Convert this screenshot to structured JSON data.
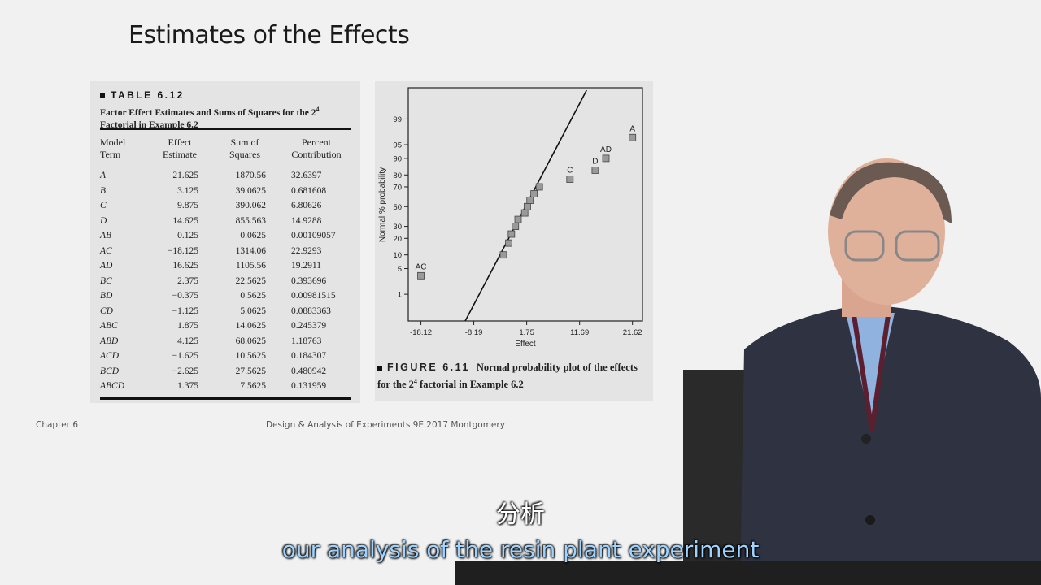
{
  "slide": {
    "title": "Estimates of the Effects",
    "footer_left": "Chapter 6",
    "footer_center": "Design & Analysis of Experiments 9E 2017 Montgomery"
  },
  "table": {
    "heading": "TABLE 6.12",
    "caption_pre": "Factor Effect Estimates and Sums of Squares for the 2",
    "caption_sup": "4",
    "caption_post": "Factorial in Example 6.2",
    "headers": [
      {
        "line1": "Model",
        "line2": "Term"
      },
      {
        "line1": "Effect",
        "line2": "Estimate"
      },
      {
        "line1": "Sum of",
        "line2": "Squares"
      },
      {
        "line1": "Percent",
        "line2": "Contribution"
      }
    ],
    "rows": [
      {
        "term": "A",
        "effect": "21.625",
        "ss": "1870.56",
        "pct": "32.6397"
      },
      {
        "term": "B",
        "effect": "3.125",
        "ss": "39.0625",
        "pct": "0.681608"
      },
      {
        "term": "C",
        "effect": "9.875",
        "ss": "390.062",
        "pct": "6.80626"
      },
      {
        "term": "D",
        "effect": "14.625",
        "ss": "855.563",
        "pct": "14.9288"
      },
      {
        "term": "AB",
        "effect": "0.125",
        "ss": "0.0625",
        "pct": "0.00109057"
      },
      {
        "term": "AC",
        "effect": "−18.125",
        "ss": "1314.06",
        "pct": "22.9293"
      },
      {
        "term": "AD",
        "effect": "16.625",
        "ss": "1105.56",
        "pct": "19.2911"
      },
      {
        "term": "BC",
        "effect": "2.375",
        "ss": "22.5625",
        "pct": "0.393696"
      },
      {
        "term": "BD",
        "effect": "−0.375",
        "ss": "0.5625",
        "pct": "0.00981515"
      },
      {
        "term": "CD",
        "effect": "−1.125",
        "ss": "5.0625",
        "pct": "0.0883363"
      },
      {
        "term": "ABC",
        "effect": "1.875",
        "ss": "14.0625",
        "pct": "0.245379"
      },
      {
        "term": "ABD",
        "effect": "4.125",
        "ss": "68.0625",
        "pct": "1.18763"
      },
      {
        "term": "ACD",
        "effect": "−1.625",
        "ss": "10.5625",
        "pct": "0.184307"
      },
      {
        "term": "BCD",
        "effect": "−2.625",
        "ss": "27.5625",
        "pct": "0.480942"
      },
      {
        "term": "ABCD",
        "effect": "1.375",
        "ss": "7.5625",
        "pct": "0.131959"
      }
    ]
  },
  "figure": {
    "label": "FIGURE 6.11",
    "caption_pre": "Normal probability plot of the effects for the 2",
    "caption_sup": "4",
    "caption_post": " factorial in Example 6.2"
  },
  "chart_data": {
    "type": "scatter",
    "title": "",
    "xlabel": "Effect",
    "ylabel": "Normal % probability",
    "xlim": [
      -20.5,
      23.5
    ],
    "x_ticks": [
      -18.12,
      -8.19,
      1.75,
      11.69,
      21.62
    ],
    "y_ticks": [
      1,
      5,
      10,
      20,
      30,
      50,
      70,
      80,
      90,
      95,
      99
    ],
    "y_scale": "normal-probability",
    "points": [
      {
        "x": -18.125,
        "p": 3.33,
        "label": "AC"
      },
      {
        "x": -2.625,
        "p": 10.0
      },
      {
        "x": -1.625,
        "p": 16.67
      },
      {
        "x": -1.125,
        "p": 23.33
      },
      {
        "x": -0.375,
        "p": 30.0
      },
      {
        "x": 0.125,
        "p": 36.67
      },
      {
        "x": 1.375,
        "p": 43.33
      },
      {
        "x": 1.875,
        "p": 50.0
      },
      {
        "x": 2.375,
        "p": 56.67
      },
      {
        "x": 3.125,
        "p": 63.33
      },
      {
        "x": 4.125,
        "p": 70.0
      },
      {
        "x": 9.875,
        "p": 76.67,
        "label": "C"
      },
      {
        "x": 14.625,
        "p": 83.33,
        "label": "D"
      },
      {
        "x": 16.625,
        "p": 90.0,
        "label": "AD"
      },
      {
        "x": 21.625,
        "p": 96.67,
        "label": "A"
      }
    ],
    "reference_line": [
      {
        "x": -9.8,
        "p": 0.12
      },
      {
        "x": 13.0,
        "p": 99.9
      }
    ],
    "grid": false
  },
  "subtitles": {
    "chinese": "分析",
    "english": "our analysis of the resin plant experiment"
  }
}
